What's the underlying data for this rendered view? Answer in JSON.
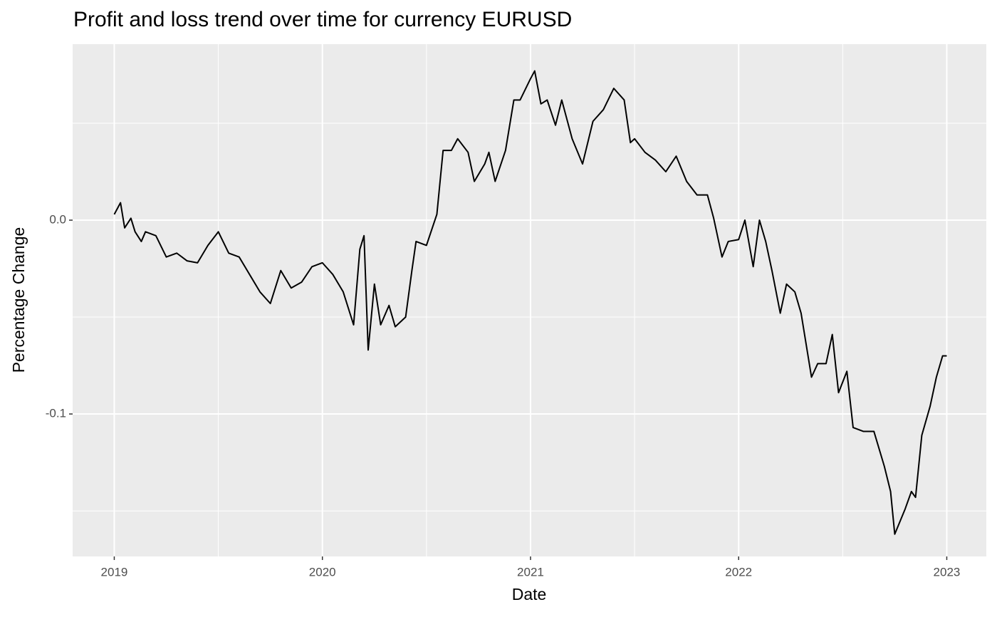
{
  "chart_data": {
    "type": "line",
    "title": "Profit and loss trend over time for currency EURUSD",
    "x_label": "Date",
    "y_label": "Percentage Change",
    "x": [
      2019.0,
      2019.03,
      2019.05,
      2019.08,
      2019.1,
      2019.13,
      2019.15,
      2019.2,
      2019.25,
      2019.3,
      2019.35,
      2019.4,
      2019.45,
      2019.5,
      2019.55,
      2019.6,
      2019.65,
      2019.7,
      2019.75,
      2019.8,
      2019.85,
      2019.9,
      2019.95,
      2020.0,
      2020.05,
      2020.1,
      2020.15,
      2020.18,
      2020.2,
      2020.22,
      2020.25,
      2020.28,
      2020.32,
      2020.35,
      2020.4,
      2020.43,
      2020.45,
      2020.5,
      2020.55,
      2020.58,
      2020.62,
      2020.65,
      2020.7,
      2020.73,
      2020.78,
      2020.8,
      2020.83,
      2020.88,
      2020.92,
      2020.95,
      2021.0,
      2021.02,
      2021.05,
      2021.08,
      2021.12,
      2021.15,
      2021.2,
      2021.25,
      2021.3,
      2021.35,
      2021.4,
      2021.45,
      2021.48,
      2021.5,
      2021.55,
      2021.6,
      2021.65,
      2021.7,
      2021.75,
      2021.8,
      2021.85,
      2021.88,
      2021.92,
      2021.95,
      2022.0,
      2022.03,
      2022.07,
      2022.1,
      2022.13,
      2022.16,
      2022.2,
      2022.23,
      2022.27,
      2022.3,
      2022.35,
      2022.38,
      2022.42,
      2022.45,
      2022.48,
      2022.52,
      2022.55,
      2022.6,
      2022.65,
      2022.7,
      2022.73,
      2022.75,
      2022.8,
      2022.83,
      2022.85,
      2022.88,
      2022.92,
      2022.95,
      2022.98,
      2023.0
    ],
    "series": [
      {
        "name": "EURUSD",
        "color": "#000000",
        "values": [
          0.003,
          0.009,
          -0.004,
          0.001,
          -0.006,
          -0.011,
          -0.006,
          -0.008,
          -0.019,
          -0.017,
          -0.021,
          -0.022,
          -0.013,
          -0.006,
          -0.017,
          -0.019,
          -0.028,
          -0.037,
          -0.043,
          -0.026,
          -0.035,
          -0.032,
          -0.024,
          -0.022,
          -0.028,
          -0.037,
          -0.054,
          -0.015,
          -0.008,
          -0.067,
          -0.033,
          -0.054,
          -0.044,
          -0.055,
          -0.05,
          -0.026,
          -0.011,
          -0.013,
          0.003,
          0.036,
          0.036,
          0.042,
          0.035,
          0.02,
          0.029,
          0.035,
          0.02,
          0.036,
          0.062,
          0.062,
          0.073,
          0.077,
          0.06,
          0.062,
          0.049,
          0.062,
          0.042,
          0.029,
          0.051,
          0.057,
          0.068,
          0.062,
          0.04,
          0.042,
          0.035,
          0.031,
          0.025,
          0.033,
          0.02,
          0.013,
          0.013,
          0.001,
          -0.019,
          -0.011,
          -0.01,
          0.0,
          -0.024,
          0.0,
          -0.011,
          -0.026,
          -0.048,
          -0.033,
          -0.037,
          -0.048,
          -0.081,
          -0.074,
          -0.074,
          -0.059,
          -0.089,
          -0.078,
          -0.107,
          -0.109,
          -0.109,
          -0.127,
          -0.14,
          -0.162,
          -0.149,
          -0.14,
          -0.143,
          -0.111,
          -0.096,
          -0.081,
          -0.07,
          -0.07
        ]
      }
    ],
    "xlim": [
      2018.8,
      2023.19
    ],
    "xticks": [
      2019,
      2020,
      2021,
      2022,
      2023
    ],
    "minor_xticks": [
      2019.5,
      2020.5,
      2021.5,
      2022.5
    ],
    "ylim": [
      -0.1735,
      0.0908
    ],
    "yticks": [
      {
        "value": 0,
        "label": "0.0"
      },
      {
        "value": -0.1,
        "label": "-0.1"
      }
    ],
    "minor_yticks": [
      0.05,
      -0.05,
      -0.15
    ],
    "grid": true
  }
}
